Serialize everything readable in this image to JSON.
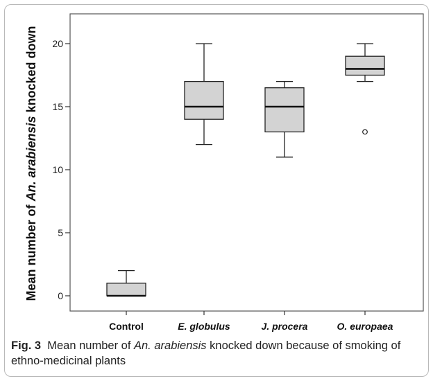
{
  "chart_data": {
    "type": "boxplot",
    "ylabel_parts": [
      "Mean number of ",
      "An. arabiensis",
      " knocked down"
    ],
    "ylim": [
      0,
      20
    ],
    "yticks": [
      0,
      5,
      10,
      15,
      20
    ],
    "categories": [
      "Control",
      "E. globulus",
      "J. procera",
      "O. europaea"
    ],
    "category_italic": [
      false,
      true,
      true,
      true
    ],
    "boxes": [
      {
        "min": 0,
        "q1": 0,
        "median": 0,
        "q3": 1,
        "max": 2,
        "outliers": []
      },
      {
        "min": 12,
        "q1": 14,
        "median": 15,
        "q3": 17,
        "max": 20,
        "outliers": []
      },
      {
        "min": 11,
        "q1": 13,
        "median": 15,
        "q3": 16.5,
        "max": 17,
        "outliers": []
      },
      {
        "min": 17,
        "q1": 17.5,
        "median": 18,
        "q3": 19,
        "max": 20,
        "outliers": [
          13
        ]
      }
    ],
    "box_color": "#d3d3d3",
    "grid": false
  },
  "caption": {
    "label": "Fig. 3",
    "text_before": "Mean number of ",
    "text_italic": "An. arabiensis",
    "text_after": " knocked down because of smoking of ethno-medicinal plants"
  }
}
